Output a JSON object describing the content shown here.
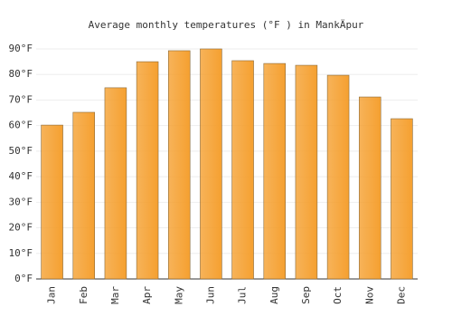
{
  "chart_data": {
    "type": "bar",
    "title": "Average monthly temperatures (°F ) in MankÄpur",
    "categories": [
      "Jan",
      "Feb",
      "Mar",
      "Apr",
      "May",
      "Jun",
      "Jul",
      "Aug",
      "Sep",
      "Oct",
      "Nov",
      "Dec"
    ],
    "values": [
      60.2,
      65.2,
      74.8,
      85,
      89.3,
      90,
      85.4,
      84.3,
      83.6,
      79.7,
      71.2,
      62.7
    ],
    "color": "#f5a030",
    "ylim": [
      0,
      90
    ],
    "yticks": [
      {
        "value": 0,
        "label": "0°F"
      },
      {
        "value": 10,
        "label": "10°F"
      },
      {
        "value": 20,
        "label": "20°F"
      },
      {
        "value": 30,
        "label": "30°F"
      },
      {
        "value": 40,
        "label": "40°F"
      },
      {
        "value": 50,
        "label": "50°F"
      },
      {
        "value": 60,
        "label": "60°F"
      },
      {
        "value": 70,
        "label": "70°F"
      },
      {
        "value": 80,
        "label": "80°F"
      },
      {
        "value": 90,
        "label": "90°F"
      }
    ],
    "grid": true
  }
}
